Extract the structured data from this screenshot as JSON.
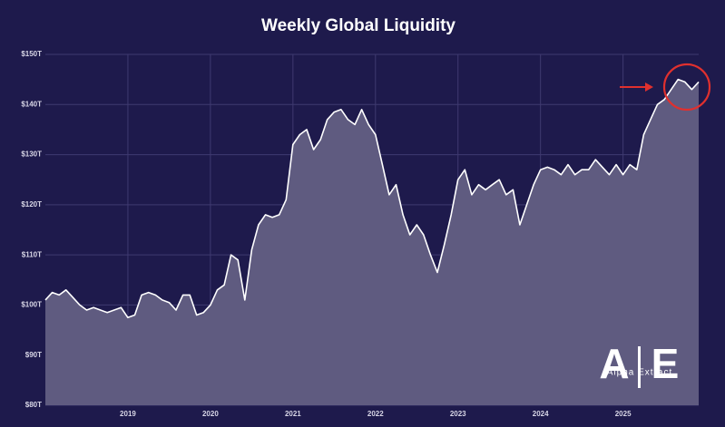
{
  "chart_data": {
    "type": "area",
    "title": "Weekly Global Liquidity",
    "categories": [
      null,
      null,
      null,
      null,
      null,
      null,
      null,
      null,
      null,
      null,
      null,
      null,
      "2019",
      null,
      null,
      null,
      null,
      null,
      null,
      null,
      null,
      null,
      null,
      null,
      "2020",
      null,
      null,
      null,
      null,
      null,
      null,
      null,
      null,
      null,
      null,
      null,
      "2021",
      null,
      null,
      null,
      null,
      null,
      null,
      null,
      null,
      null,
      null,
      null,
      "2022",
      null,
      null,
      null,
      null,
      null,
      null,
      null,
      null,
      null,
      null,
      null,
      "2023",
      null,
      null,
      null,
      null,
      null,
      null,
      null,
      null,
      null,
      null,
      null,
      "2024",
      null,
      null,
      null,
      null,
      null,
      null,
      null,
      null,
      null,
      null,
      null,
      "2025",
      null,
      null,
      null,
      null,
      null,
      null,
      null,
      null,
      null,
      null,
      null
    ],
    "values": [
      101,
      102.5,
      102,
      103,
      101.5,
      100,
      99,
      99.5,
      99,
      98.5,
      99,
      99.5,
      97.5,
      98,
      102,
      102.5,
      102,
      101,
      100.5,
      99,
      102,
      102,
      98,
      98.5,
      100,
      103,
      104,
      110,
      109,
      101,
      111,
      116,
      118,
      117.5,
      118,
      121,
      132,
      134,
      135,
      131,
      133,
      137,
      138.5,
      139,
      137,
      136,
      139,
      136,
      134,
      128,
      122,
      124,
      118,
      114,
      116,
      114,
      110,
      106.5,
      112,
      118,
      125,
      127,
      122,
      124,
      123,
      124,
      125,
      122,
      123,
      116,
      120,
      124,
      127,
      127.5,
      127,
      126,
      128,
      126,
      127,
      127,
      129,
      127.5,
      126,
      128,
      126,
      128,
      127,
      134,
      137,
      140,
      141,
      143,
      145,
      144.5,
      143,
      144.5
    ],
    "color": "#5f5b80",
    "line_color": "#ffffff",
    "ylim": [
      80,
      150
    ],
    "yticks": [
      {
        "value": 80,
        "label": "$80T"
      },
      {
        "value": 90,
        "label": "$90T"
      },
      {
        "value": 100,
        "label": "$100T"
      },
      {
        "value": 110,
        "label": "$110T"
      },
      {
        "value": 120,
        "label": "$120T"
      },
      {
        "value": 130,
        "label": "$130T"
      },
      {
        "value": 140,
        "label": "$140T"
      },
      {
        "value": 150,
        "label": "$150T"
      }
    ],
    "grid": true
  },
  "logo": {
    "left": "A",
    "right": "E",
    "name": "Alpha Extract"
  }
}
